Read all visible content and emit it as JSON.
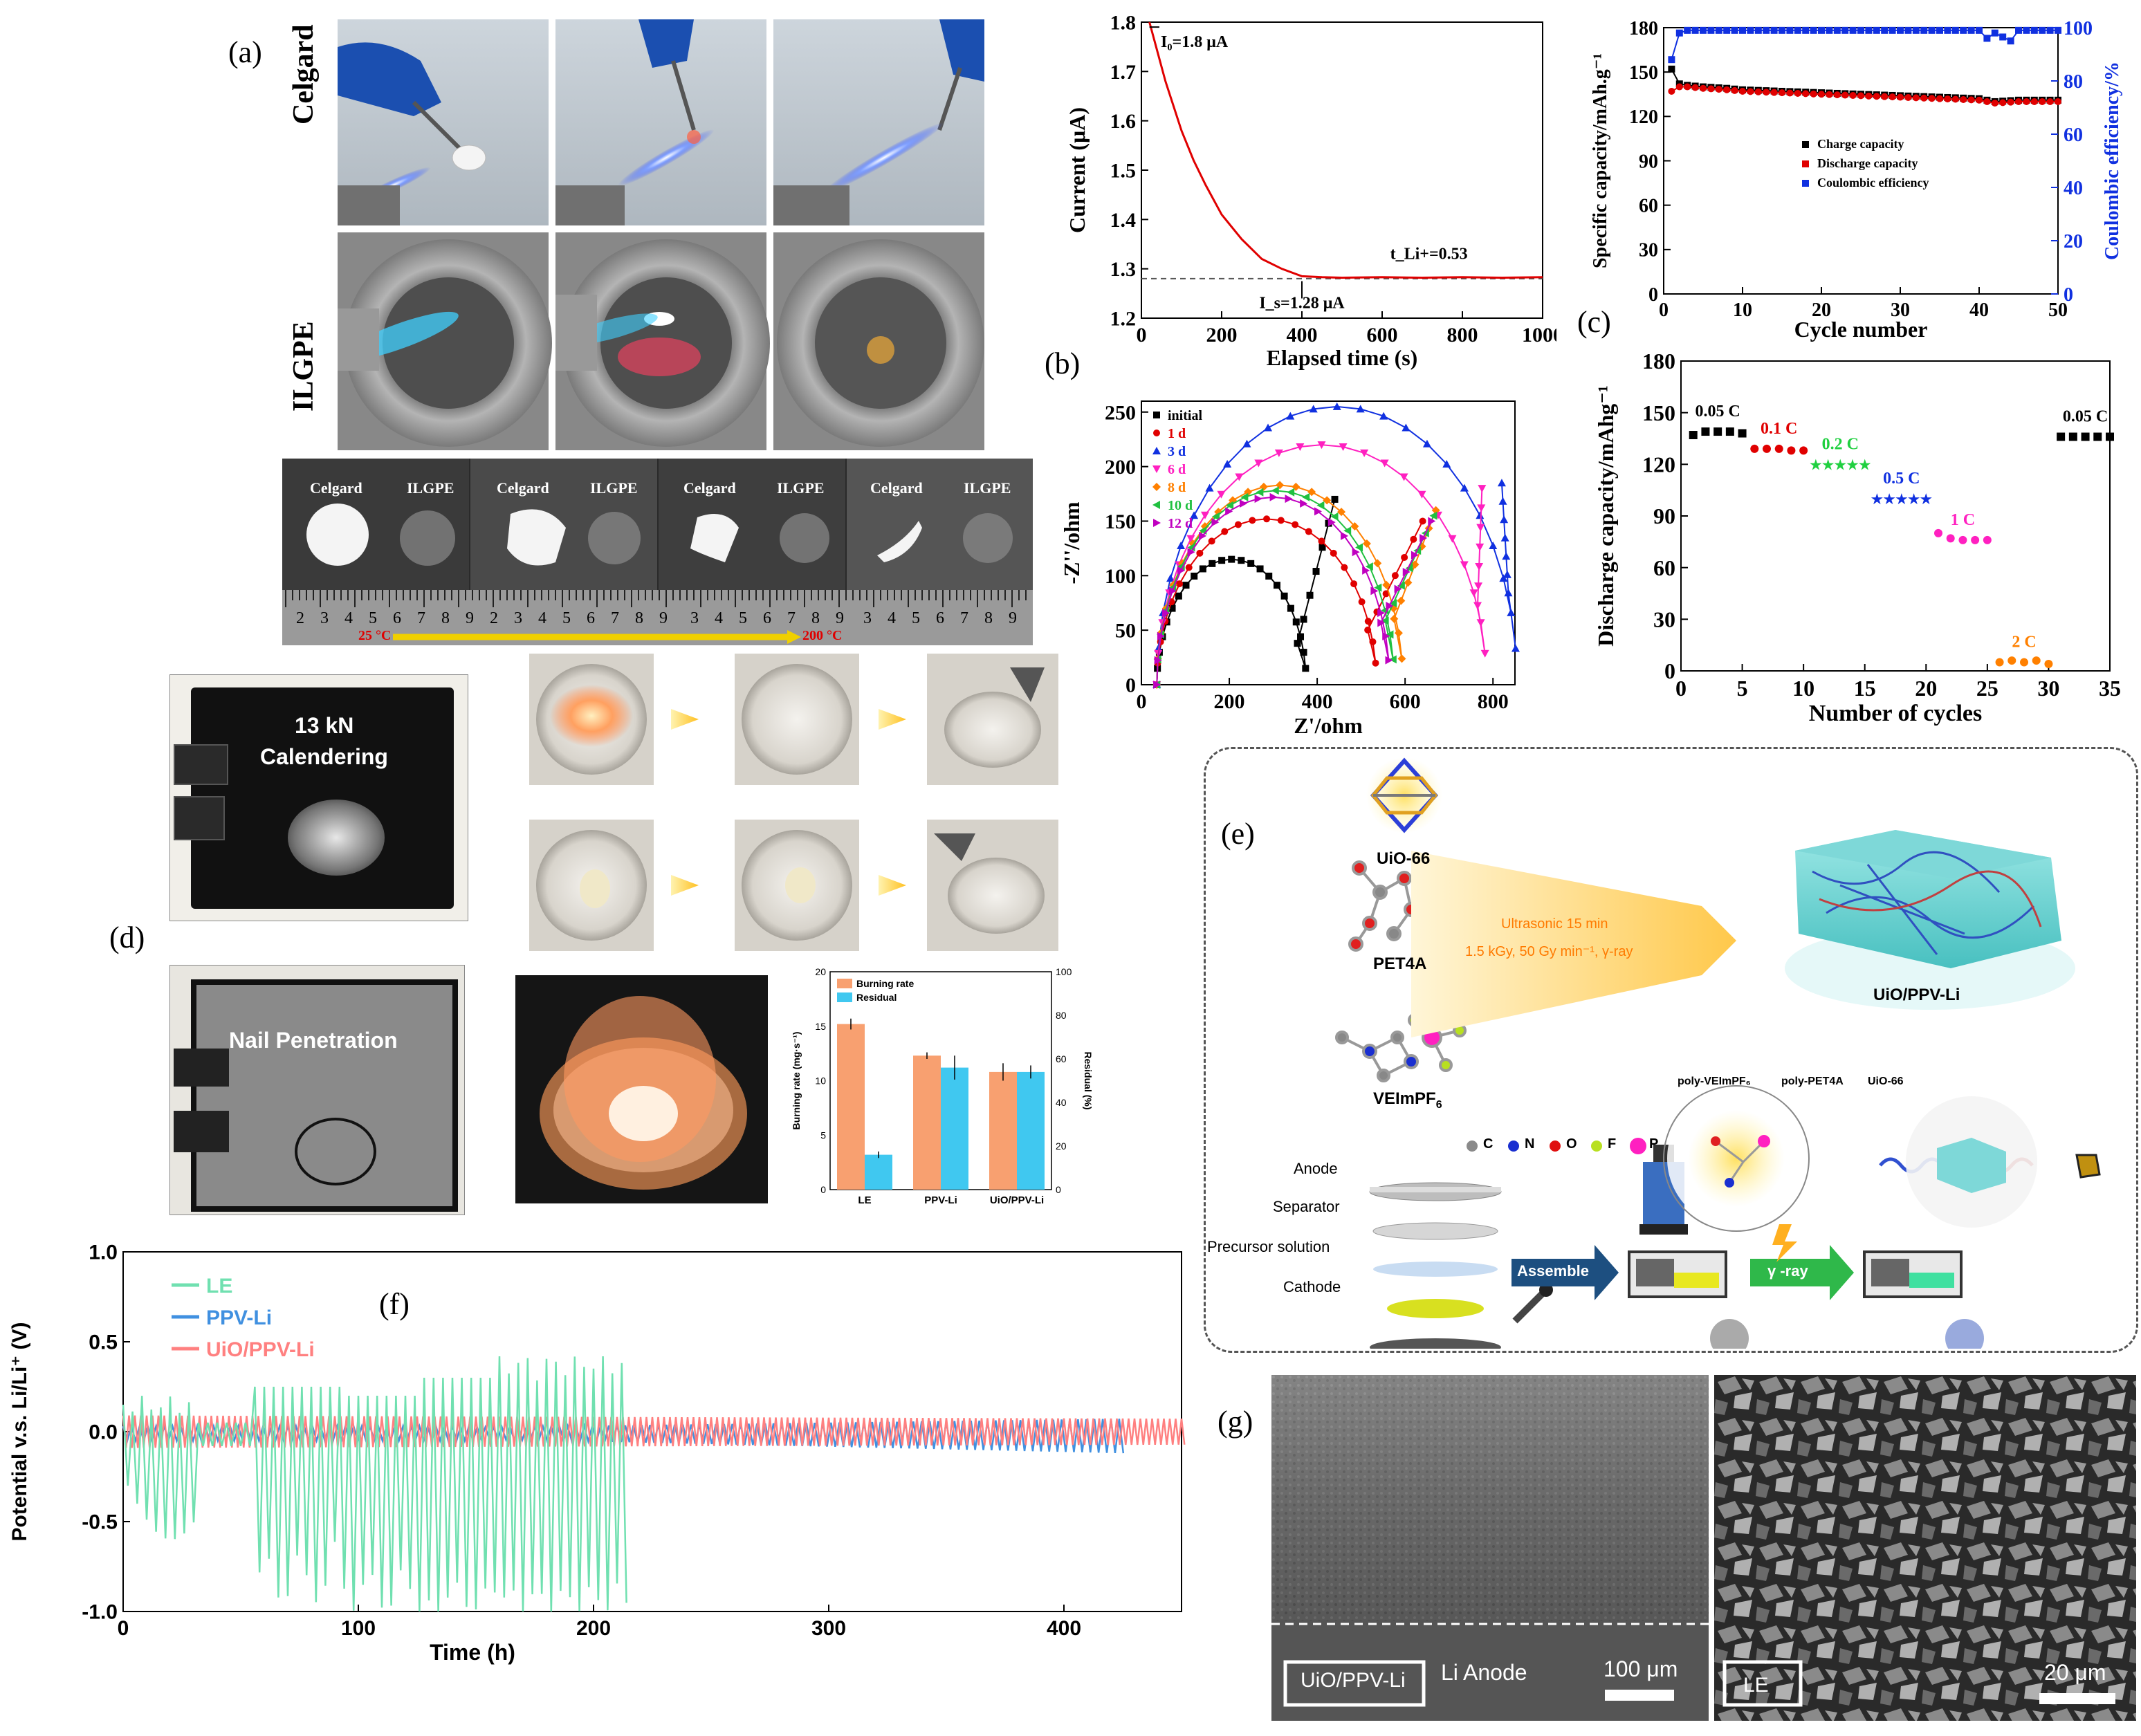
{
  "panel_labels": {
    "a": "(a)",
    "b": "(b)",
    "c": "(c)",
    "d": "(d)",
    "e": "(e)",
    "f": "(f)",
    "g": "(g)"
  },
  "panel_a": {
    "row_labels": [
      "Celgard",
      "ILGPE"
    ],
    "strip_labels": [
      "Celgard",
      "ILGPE",
      "Celgard",
      "ILGPE",
      "Celgard",
      "ILGPE",
      "Celgard",
      "ILGPE"
    ],
    "ruler_digits": [
      "2",
      "3",
      "4",
      "5",
      "6",
      "7",
      "8",
      "9",
      "2",
      "3",
      "4",
      "5",
      "6",
      "7",
      "8",
      "9",
      "3",
      "4",
      "5",
      "6",
      "7",
      "8",
      "9",
      "3",
      "4",
      "5",
      "6",
      "7",
      "8",
      "9"
    ],
    "temp_start": "25 °C",
    "temp_end": "200 °C",
    "colors": {
      "temp": "#e00000",
      "arrow": "#f0d000"
    }
  },
  "panel_d": {
    "calender_label_1": "13 kN",
    "calender_label_2": "Calendering",
    "nail_label": "Nail Penetration"
  },
  "panel_e": {
    "uio66": "UiO-66",
    "pet4a": "PET4A",
    "veimpf6": "VEImPF",
    "veimpf6_sub": "6",
    "condition_1": "Ultrasonic 15 min",
    "condition_2": "1.5 kGy, 50 Gy min⁻¹, γ-ray",
    "product": "UiO/PPV-Li",
    "atoms": [
      {
        "symbol": "C",
        "color": "#8a8a8a"
      },
      {
        "symbol": "N",
        "color": "#1a2fd0"
      },
      {
        "symbol": "O",
        "color": "#e01010"
      },
      {
        "symbol": "F",
        "color": "#b8e020"
      },
      {
        "symbol": "P",
        "color": "#ff20c0"
      }
    ],
    "legend": [
      "poly-VEImPF₆",
      "poly-PET4A",
      "UiO-66"
    ],
    "layers": [
      "Anode",
      "Separator",
      "Precursor solution",
      "Cathode"
    ],
    "assemble": "Assemble",
    "gamma": "γ -ray"
  },
  "panel_g": {
    "left_label": "UiO/PPV-Li",
    "left_anode": "Li Anode",
    "left_scale": "100 μm",
    "right_label": "LE",
    "right_scale": "20 μm"
  },
  "chart_data": [
    {
      "id": "current-time",
      "type": "line",
      "xlabel": "Elapsed time (s)",
      "ylabel": "Current (μA)",
      "xlim": [
        0,
        1000
      ],
      "ylim": [
        1.2,
        1.8
      ],
      "xticks": [
        0,
        200,
        400,
        600,
        800,
        1000
      ],
      "yticks": [
        1.2,
        1.3,
        1.4,
        1.5,
        1.6,
        1.7,
        1.8
      ],
      "annotations": [
        "I₀=1.8 μA",
        "I_s=1.28 μA",
        "t_Li+=0.53"
      ],
      "x": [
        20,
        40,
        60,
        80,
        100,
        130,
        160,
        200,
        250,
        300,
        350,
        400,
        450,
        500,
        600,
        700,
        800,
        900,
        1000
      ],
      "y": [
        1.8,
        1.74,
        1.68,
        1.63,
        1.58,
        1.52,
        1.47,
        1.41,
        1.36,
        1.32,
        1.3,
        1.285,
        1.283,
        1.282,
        1.283,
        1.282,
        1.283,
        1.282,
        1.283
      ],
      "color": "#e00000"
    },
    {
      "id": "cycling",
      "type": "line",
      "xlabel": "Cycle number",
      "ylabel": "Specific capacity/mAh.g⁻¹",
      "ylabel2": "Coulombic efficiency/%",
      "xlim": [
        0,
        50
      ],
      "ylim": [
        0,
        180
      ],
      "ylim2": [
        0,
        100
      ],
      "xticks": [
        0,
        10,
        20,
        30,
        40,
        50
      ],
      "yticks": [
        0,
        30,
        60,
        90,
        120,
        150,
        180
      ],
      "yticks2": [
        0,
        20,
        40,
        60,
        80,
        100
      ],
      "series": [
        {
          "name": "Charge capacity",
          "color": "#000000",
          "x": [
            1,
            2,
            3,
            5,
            8,
            10,
            15,
            20,
            25,
            30,
            35,
            40,
            42,
            45,
            48,
            50
          ],
          "values": [
            152,
            142,
            141,
            140,
            139,
            138,
            137,
            136,
            135,
            134,
            133,
            132,
            130,
            131,
            131,
            131
          ]
        },
        {
          "name": "Discharge capacity",
          "color": "#e00000",
          "x": [
            1,
            2,
            3,
            5,
            8,
            10,
            15,
            20,
            25,
            30,
            35,
            40,
            42,
            45,
            48,
            50
          ],
          "values": [
            137,
            140,
            140,
            139,
            138,
            137,
            136,
            135,
            134,
            133,
            132,
            131,
            129,
            130,
            130,
            130
          ]
        },
        {
          "name": "Coulombic efficiency",
          "color": "#1030e0",
          "axis": "right",
          "x": [
            1,
            2,
            3,
            5,
            8,
            10,
            15,
            20,
            25,
            30,
            35,
            40,
            41,
            42,
            44,
            45,
            48,
            50
          ],
          "values": [
            88,
            98,
            99,
            99,
            99,
            99,
            99,
            99,
            99,
            99,
            99,
            99,
            96,
            98,
            95,
            99,
            99,
            99
          ]
        }
      ]
    },
    {
      "id": "nyquist",
      "type": "line",
      "xlabel": "Z'/ohm",
      "ylabel": "-Z''/ohm",
      "xlim": [
        0,
        850
      ],
      "ylim": [
        0,
        260
      ],
      "xticks": [
        0,
        200,
        400,
        600,
        800
      ],
      "yticks": [
        0,
        50,
        100,
        150,
        200,
        250
      ],
      "series": [
        {
          "name": "initial",
          "color": "#000000",
          "marker": "square",
          "center": 205,
          "radius": 170,
          "peak": 115,
          "tail_end": [
            440,
            170
          ]
        },
        {
          "name": "1 d",
          "color": "#e00000",
          "marker": "circle",
          "center": 285,
          "radius": 230,
          "peak": 152,
          "tail_end": [
            640,
            150
          ]
        },
        {
          "name": "3 d",
          "color": "#1030e0",
          "marker": "triangle",
          "center": 445,
          "radius": 410,
          "peak": 255,
          "tail_end": [
            820,
            185
          ]
        },
        {
          "name": "6 d",
          "color": "#ff20c0",
          "marker": "triangle-down",
          "center": 410,
          "radius": 370,
          "peak": 220,
          "tail_end": [
            775,
            180
          ]
        },
        {
          "name": "8 d",
          "color": "#ff8000",
          "marker": "diamond",
          "center": 315,
          "radius": 270,
          "peak": 183,
          "tail_end": [
            670,
            160
          ]
        },
        {
          "name": "10 d",
          "color": "#20c040",
          "marker": "left",
          "center": 305,
          "radius": 262,
          "peak": 178,
          "tail_end": [
            665,
            155
          ]
        },
        {
          "name": "12 d",
          "color": "#c000c0",
          "marker": "right",
          "center": 300,
          "radius": 255,
          "peak": 172,
          "tail_end": [
            660,
            150
          ]
        }
      ]
    },
    {
      "id": "rate",
      "type": "scatter",
      "xlabel": "Number of cycles",
      "ylabel": "Discharge capacity/mAhg⁻¹",
      "xlim": [
        0,
        35
      ],
      "ylim": [
        0,
        180
      ],
      "xticks": [
        0,
        5,
        10,
        15,
        20,
        25,
        30,
        35
      ],
      "yticks": [
        0,
        30,
        60,
        90,
        120,
        150,
        180
      ],
      "series": [
        {
          "name": "0.05 C",
          "color": "#000000",
          "marker": "square",
          "x": [
            1,
            2,
            3,
            4,
            5
          ],
          "values": [
            137,
            139,
            139,
            139,
            138
          ]
        },
        {
          "name": "0.1 C",
          "color": "#e00000",
          "marker": "circle",
          "x": [
            6,
            7,
            8,
            9,
            10
          ],
          "values": [
            129,
            129,
            129,
            128,
            128
          ]
        },
        {
          "name": "0.2 C",
          "color": "#20d040",
          "marker": "star",
          "x": [
            11,
            12,
            13,
            14,
            15
          ],
          "values": [
            120,
            120,
            120,
            120,
            120
          ]
        },
        {
          "name": "0.5 C",
          "color": "#1030e0",
          "marker": "star",
          "x": [
            16,
            17,
            18,
            19,
            20
          ],
          "values": [
            100,
            100,
            100,
            100,
            100
          ]
        },
        {
          "name": "1 C",
          "color": "#ff20c0",
          "marker": "circle",
          "x": [
            21,
            22,
            23,
            24,
            25
          ],
          "values": [
            80,
            77,
            76,
            76,
            76
          ]
        },
        {
          "name": "2 C",
          "color": "#ff8000",
          "marker": "circle",
          "x": [
            26,
            27,
            28,
            29,
            30
          ],
          "values": [
            5,
            6,
            5,
            6,
            4
          ]
        },
        {
          "name": "0.05 C",
          "color": "#000000",
          "marker": "square",
          "x": [
            31,
            32,
            33,
            34,
            35
          ],
          "values": [
            136,
            136,
            136,
            136,
            136
          ]
        }
      ]
    },
    {
      "id": "burning",
      "type": "bar",
      "categories": [
        "LE",
        "PPV-Li",
        "UiO/PPV-Li"
      ],
      "ylabel": "Burning rate (mg·s⁻¹)",
      "ylabel2": "Residual (%)",
      "ylim": [
        0,
        20
      ],
      "ylim2": [
        0,
        100
      ],
      "yticks": [
        0,
        5,
        10,
        15,
        20
      ],
      "yticks2": [
        0,
        20,
        40,
        60,
        80,
        100
      ],
      "series": [
        {
          "name": "Burning rate",
          "color": "#f8a070",
          "values": [
            15.2,
            12.3,
            10.8
          ],
          "errors": [
            0.5,
            0.3,
            0.8
          ]
        },
        {
          "name": "Residual",
          "color": "#40c8f0",
          "axis": "right",
          "values": [
            16,
            56,
            54
          ],
          "errors": [
            1.5,
            5.5,
            3
          ]
        }
      ]
    },
    {
      "id": "potential-time",
      "type": "line",
      "xlabel": "Time (h)",
      "ylabel": "Potential v.s. Li/Li⁺ (V)",
      "xlim": [
        0,
        450
      ],
      "ylim": [
        -1.0,
        1.0
      ],
      "xticks": [
        0,
        100,
        200,
        300,
        400
      ],
      "yticks": [
        -1.0,
        -0.5,
        0.0,
        0.5,
        1.0
      ],
      "series": [
        {
          "name": "LE",
          "color": "#70e0b0",
          "end_time": 215
        },
        {
          "name": "PPV-Li",
          "color": "#4090e0",
          "end_time": 425
        },
        {
          "name": "UiO/PPV-Li",
          "color": "#ff8080",
          "end_time": 450
        }
      ]
    }
  ]
}
